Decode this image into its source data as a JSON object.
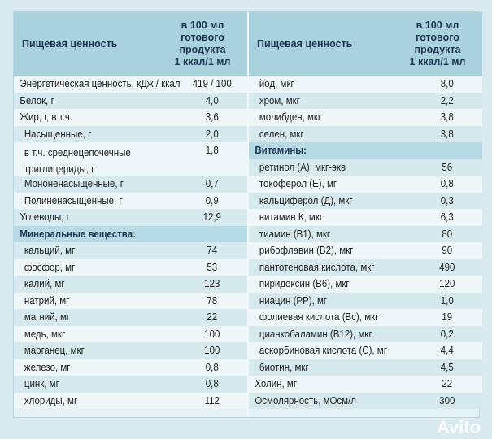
{
  "header": {
    "label_left": "Пищевая ценность",
    "value_left": "в 100 мл\nготового\nпродукта\n1 ккал/1 мл",
    "label_right": "Пищевая ценность",
    "value_right": "в 100 мл\nготового\nпродукта\n1 ккал/1 мл"
  },
  "left": [
    {
      "label": "Энергетическая ценность, кДж / ккал",
      "value": "419 / 100"
    },
    {
      "label": "Белок, г",
      "value": "4,0"
    },
    {
      "label": "Жир, г, в т.ч.",
      "value": "3,6"
    },
    {
      "label": "Насыщенные, г",
      "value": "2,0",
      "indent": true
    },
    {
      "label": "в т.ч. среднецепочечные\nтриглицериды, г",
      "value": "1,8",
      "indent": true,
      "tall": true
    },
    {
      "label": "Мононенасыщенные, г",
      "value": "0,7",
      "indent": true
    },
    {
      "label": "Полиненасыщенные, г",
      "value": "0,9",
      "indent": true
    },
    {
      "label": "Углеводы, г",
      "value": "12,9"
    },
    {
      "label": "Минеральные вещества:",
      "value": "",
      "section": true
    },
    {
      "label": "кальций, мг",
      "value": "74",
      "indent": true
    },
    {
      "label": "фосфор, мг",
      "value": "53",
      "indent": true
    },
    {
      "label": "калий, мг",
      "value": "123",
      "indent": true
    },
    {
      "label": "натрий, мг",
      "value": "78",
      "indent": true
    },
    {
      "label": "магний, мг",
      "value": "22",
      "indent": true
    },
    {
      "label": "медь, мкг",
      "value": "100",
      "indent": true
    },
    {
      "label": "марганец, мкг",
      "value": "100",
      "indent": true
    },
    {
      "label": "железо, мг",
      "value": "0,8",
      "indent": true
    },
    {
      "label": "цинк, мг",
      "value": "0,8",
      "indent": true
    },
    {
      "label": "хлориды, мг",
      "value": "112",
      "indent": true
    }
  ],
  "right": [
    {
      "label": "йод, мкг",
      "value": "8,0",
      "indent": true
    },
    {
      "label": "хром, мкг",
      "value": "2,2",
      "indent": true
    },
    {
      "label": "молибден, мкг",
      "value": "3,8",
      "indent": true
    },
    {
      "label": "селен, мкг",
      "value": "3,8",
      "indent": true
    },
    {
      "label": "Витамины:",
      "value": "",
      "section": true
    },
    {
      "label": "ретинол (А), мкг-экв",
      "value": "56",
      "indent": true
    },
    {
      "label": "токоферол (Е), мг",
      "value": "0,8",
      "indent": true
    },
    {
      "label": "кальциферол (Д), мкг",
      "value": "0,3",
      "indent": true
    },
    {
      "label": "витамин К, мкг",
      "value": "6,3",
      "indent": true
    },
    {
      "label": "тиамин (В1), мкг",
      "value": "80",
      "indent": true
    },
    {
      "label": "рибофлавин (В2), мкг",
      "value": "90",
      "indent": true
    },
    {
      "label": "пантотеновая кислота, мкг",
      "value": "490",
      "indent": true
    },
    {
      "label": "пиридоксин (В6), мкг",
      "value": "120",
      "indent": true
    },
    {
      "label": "ниацин (РР), мг",
      "value": "1,0",
      "indent": true
    },
    {
      "label": "фолиевая кислота (Вс), мкг",
      "value": "19",
      "indent": true
    },
    {
      "label": "цианкобаламин (В12), мкг",
      "value": "0,2",
      "indent": true
    },
    {
      "label": "аскорбиновая кислота (С), мг",
      "value": "4,4",
      "indent": true
    },
    {
      "label": "биотин, мкг",
      "value": "4,5",
      "indent": true
    },
    {
      "label": "Холин, мг",
      "value": "22"
    },
    {
      "label": "Осмолярность, мОсм/л",
      "value": "300"
    }
  ],
  "watermark": "Avito"
}
